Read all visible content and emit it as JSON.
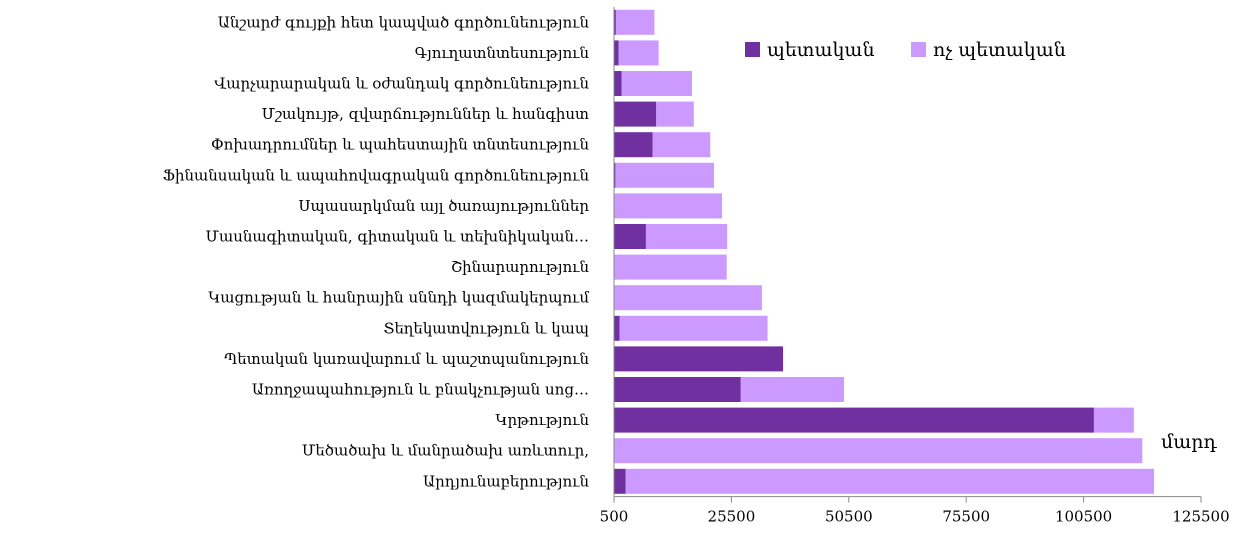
{
  "chart_data": {
    "type": "bar",
    "orientation": "horizontal",
    "stacked": true,
    "categories": [
      "Արդյունաբերություն",
      "Մեծածախ և մանրածախ առևտուր,",
      "Կրթություն",
      "Առողջապահություն և բնակչության սոց…",
      "Պետական կառավարում և պաշտպանություն",
      "Տեղեկատվություն և կապ",
      "Կացության և հանրային սննդի կազմակերպում",
      "Շինարարություն",
      "Մասնագիտական, գիտական և տեխնիկական…",
      "Սպասարկման այլ ծառայություններ",
      "Ֆինանսական և ապահովագրական գործունեություն",
      "Փոխադրումներ և պահեստային տնտեսություն",
      "Մշակույթ, զվարճություններ և հանգիստ",
      "Վարչարարական և օժանդակ գործունեություն",
      "Գյուղատնտեսություն",
      "Անշարժ գույքի հետ կապված գործունեություն"
    ],
    "series": [
      {
        "name": "պետական",
        "color": "#7030a0",
        "values": [
          2500,
          0,
          102200,
          27000,
          36000,
          1200,
          0,
          0,
          6800,
          0,
          300,
          8200,
          9000,
          1600,
          1000,
          400
        ]
      },
      {
        "name": "ոչ պետական",
        "color": "#cc99ff",
        "values": [
          112500,
          112500,
          8500,
          22000,
          0,
          31500,
          31500,
          24000,
          17300,
          23000,
          21000,
          12300,
          8000,
          15000,
          8500,
          8200
        ]
      }
    ],
    "x_ticks": [
      "500",
      "25500",
      "50500",
      "75500",
      "100500",
      "125500"
    ],
    "xlim": [
      500,
      125500
    ],
    "unit_label": "մարդ",
    "legend_position": "top-right",
    "grid": false
  }
}
